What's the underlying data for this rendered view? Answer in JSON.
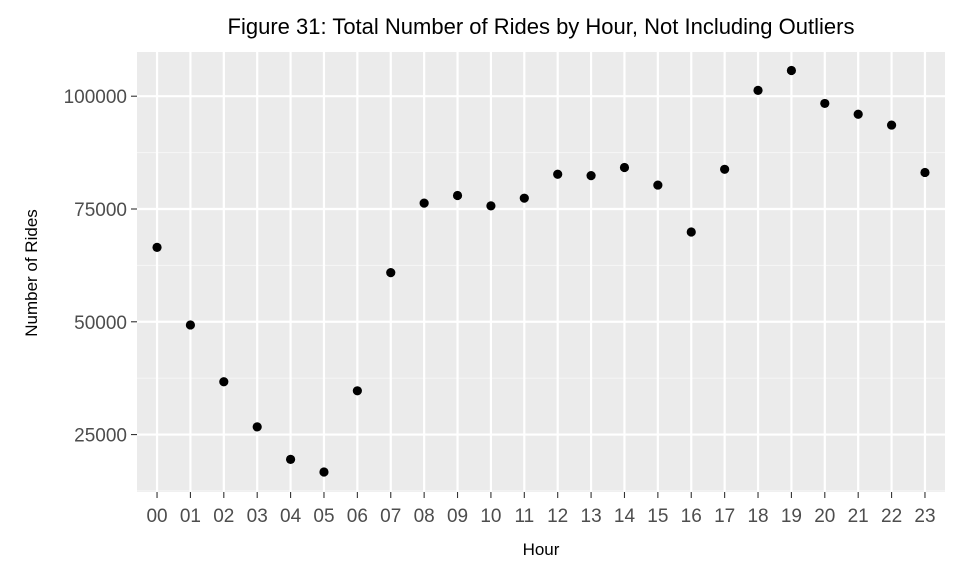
{
  "chart_data": {
    "type": "scatter",
    "title": "Figure 31: Total Number of Rides by Hour, Not Including Outliers",
    "xlabel": "Hour",
    "ylabel": "Number of Rides",
    "categories": [
      "00",
      "01",
      "02",
      "03",
      "04",
      "05",
      "06",
      "07",
      "08",
      "09",
      "10",
      "11",
      "12",
      "13",
      "14",
      "15",
      "16",
      "17",
      "18",
      "19",
      "20",
      "21",
      "22",
      "23"
    ],
    "values": [
      66500,
      49300,
      36700,
      26700,
      19500,
      16700,
      34700,
      60900,
      76300,
      78000,
      75700,
      77400,
      82700,
      82400,
      84200,
      80300,
      69900,
      83800,
      101300,
      105700,
      98400,
      96000,
      93600,
      83100
    ],
    "y_ticks": [
      25000,
      50000,
      75000,
      100000
    ],
    "y_tick_labels": [
      "25000",
      "50000",
      "75000",
      "100000"
    ],
    "ylim": [
      12270,
      109800
    ],
    "grid": true,
    "legend": "none",
    "colors": {
      "panel_background": "#ebebeb",
      "grid_major": "#ffffff",
      "grid_minor": "#f5f5f5",
      "point": "#000000",
      "tick_label": "#4d4d4d"
    }
  }
}
